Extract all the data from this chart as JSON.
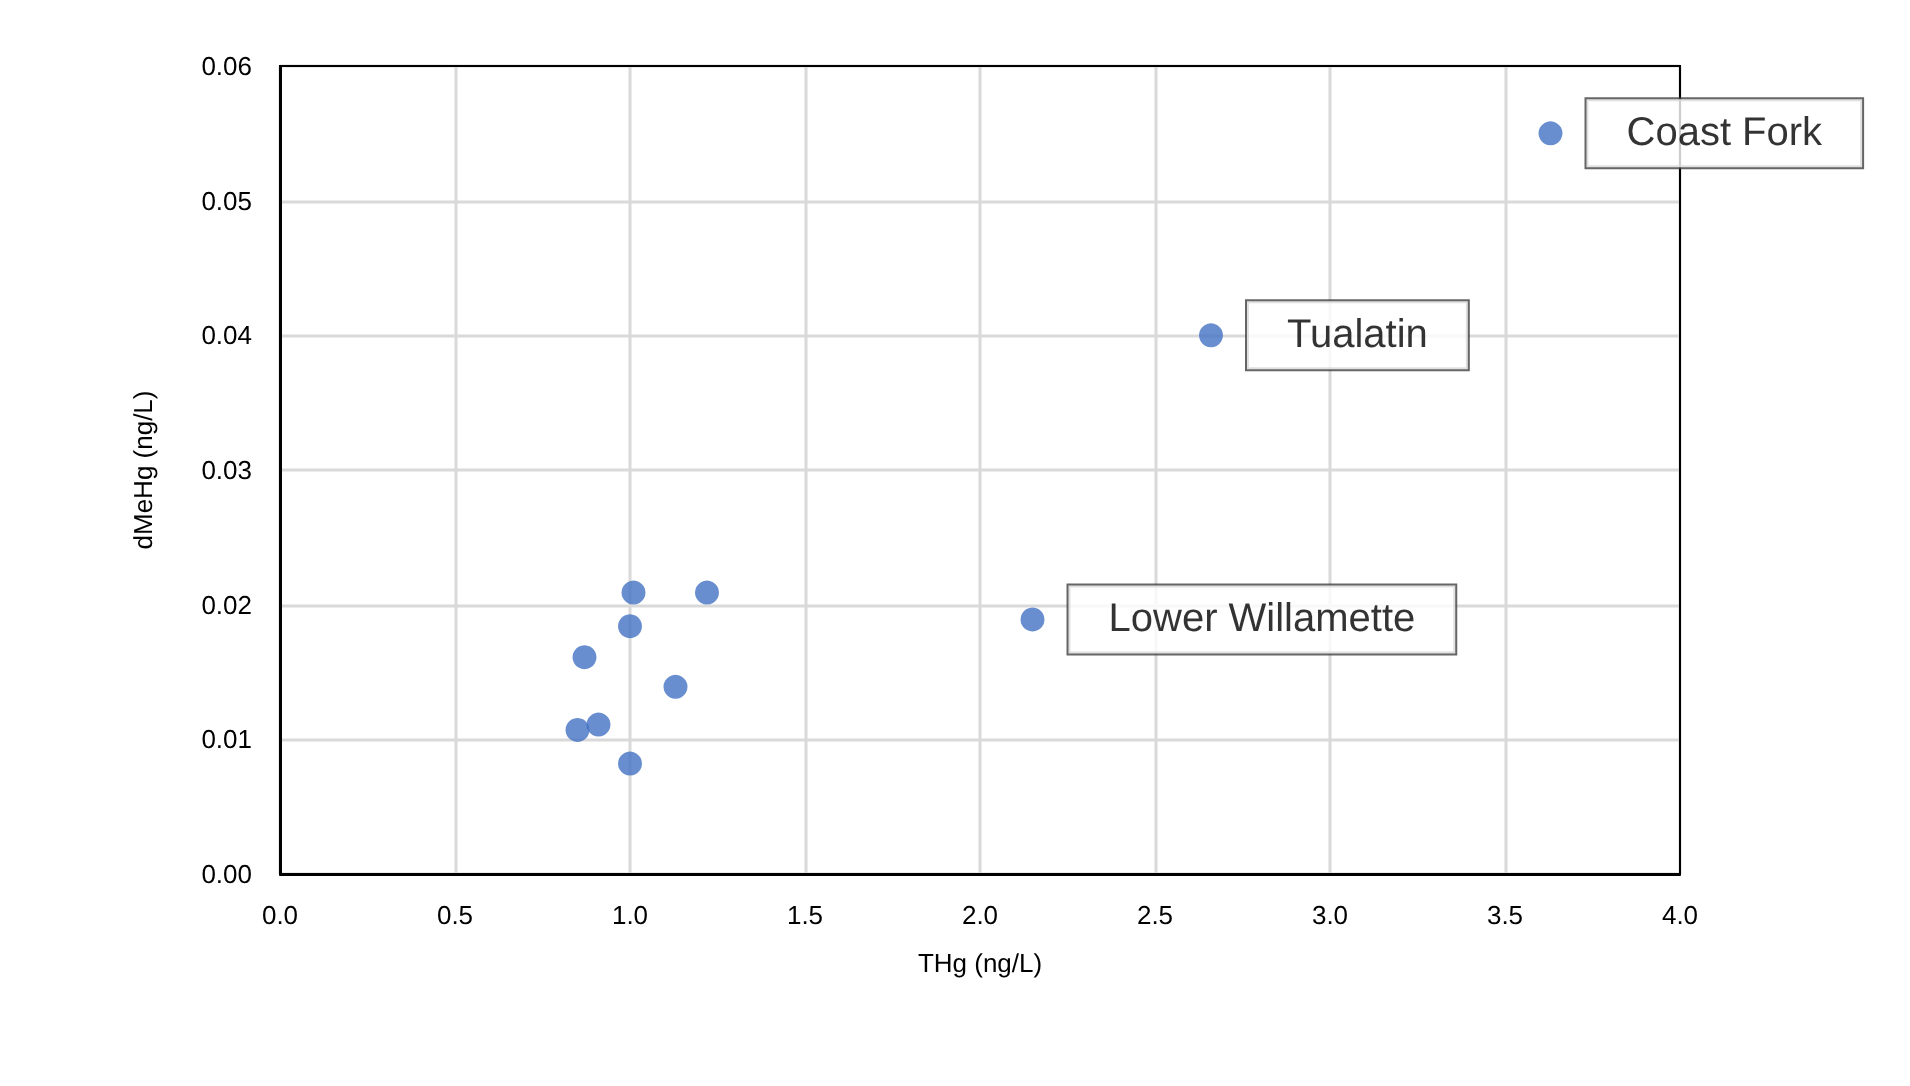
{
  "chart_data": {
    "type": "scatter",
    "xlabel": "THg (ng/L)",
    "ylabel": "dMeHg (ng/L)",
    "x": [
      3.63,
      2.66,
      2.15,
      1.22,
      1.01,
      1.0,
      0.87,
      1.13,
      0.85,
      0.91,
      1.0
    ],
    "values": [
      0.055,
      0.04,
      0.0189,
      0.0209,
      0.0209,
      0.0184,
      0.0161,
      0.0139,
      0.0107,
      0.0111,
      0.0082
    ],
    "color": "#4472c4",
    "marker": "circle",
    "xlim": [
      0,
      4
    ],
    "xticks": [
      {
        "value": 0,
        "label": "0.0"
      },
      {
        "value": 0.5,
        "label": "0.5"
      },
      {
        "value": 1,
        "label": "1.0"
      },
      {
        "value": 1.5,
        "label": "1.5"
      },
      {
        "value": 2,
        "label": "2.0"
      },
      {
        "value": 2.5,
        "label": "2.5"
      },
      {
        "value": 3,
        "label": "3.0"
      },
      {
        "value": 3.5,
        "label": "3.5"
      },
      {
        "value": 4,
        "label": "4.0"
      }
    ],
    "ylim": [
      0,
      0.06
    ],
    "yticks": [
      {
        "value": 0,
        "label": "0.00"
      },
      {
        "value": 0.01,
        "label": "0.01"
      },
      {
        "value": 0.02,
        "label": "0.02"
      },
      {
        "value": 0.03,
        "label": "0.03"
      },
      {
        "value": 0.04,
        "label": "0.04"
      },
      {
        "value": 0.05,
        "label": "0.05"
      },
      {
        "value": 0.06,
        "label": "0.06"
      }
    ],
    "grid": true,
    "annotations": [
      {
        "text": "Coast Fork",
        "x": 3.63,
        "y": 0.055
      },
      {
        "text": "Tualatin",
        "x": 2.66,
        "y": 0.04
      },
      {
        "text": "Lower Willamette",
        "x": 2.15,
        "y": 0.0189
      }
    ]
  }
}
